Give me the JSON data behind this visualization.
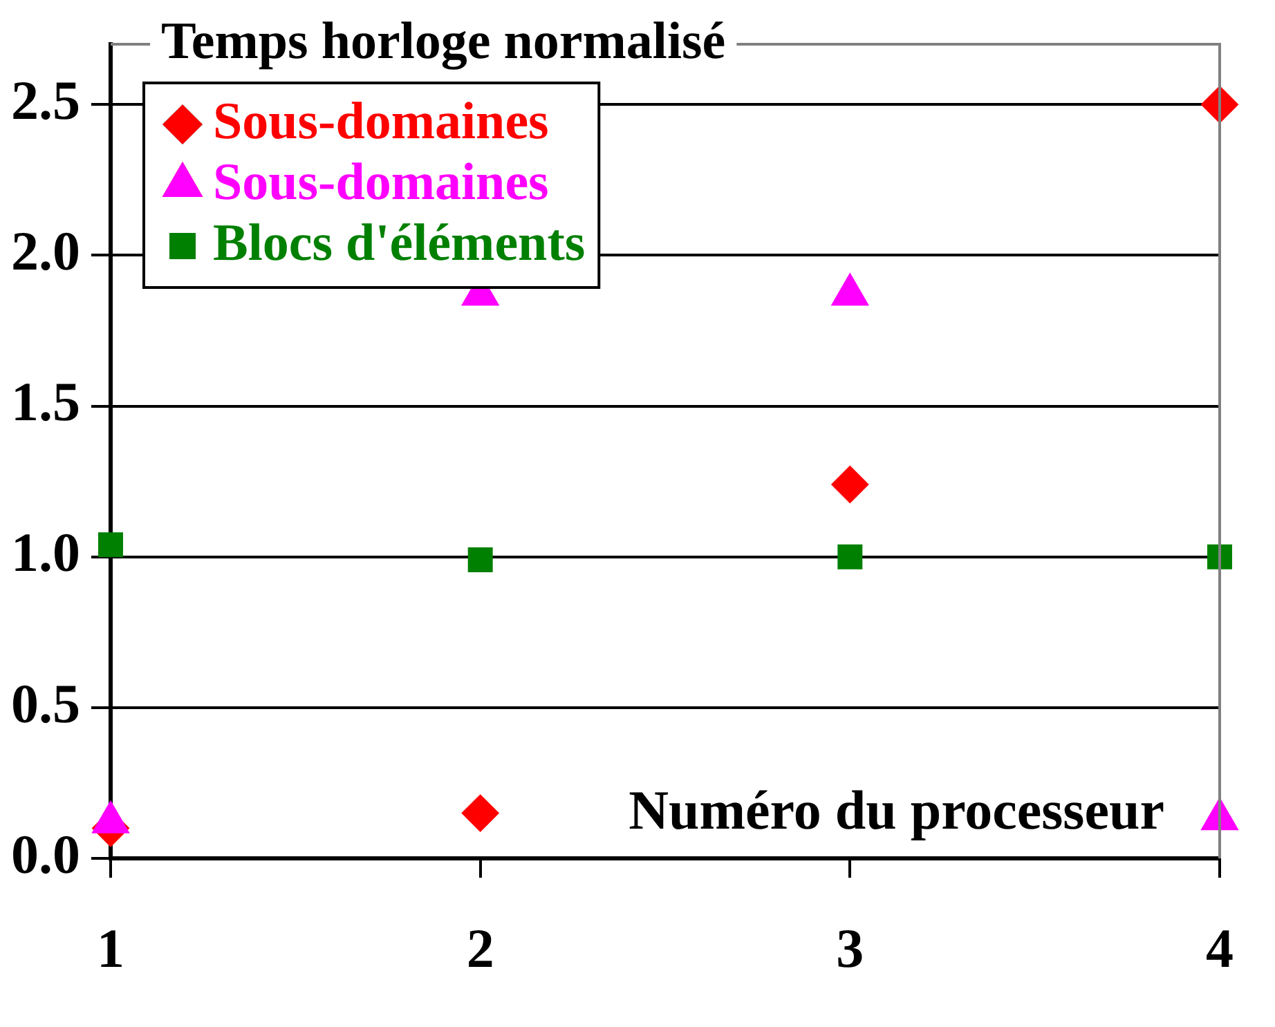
{
  "chart_data": {
    "type": "scatter",
    "title": "Temps horloge normalisé",
    "xlabel": "Numéro du processeur",
    "x": [
      1,
      2,
      3,
      4
    ],
    "xlim": [
      1,
      4
    ],
    "xticks": [
      1,
      2,
      3,
      4
    ],
    "ylim": [
      0,
      2.7
    ],
    "yticks": [
      {
        "value": 0,
        "label": "0.0"
      },
      {
        "value": 0.5,
        "label": "0.5"
      },
      {
        "value": 1,
        "label": "1.0"
      },
      {
        "value": 1.5,
        "label": "1.5"
      },
      {
        "value": 2,
        "label": "2.0"
      },
      {
        "value": 2.5,
        "label": "2.5"
      }
    ],
    "grid": "y",
    "legend": "top left",
    "series": [
      {
        "name": "Sous-domaines",
        "color": "#ff0000",
        "marker": "diamond",
        "values": [
          0.1,
          0.15,
          1.24,
          2.5
        ]
      },
      {
        "name": "Sous-domaines",
        "color": "#ff00ff",
        "marker": "triangle",
        "values": [
          0.12,
          1.87,
          1.87,
          0.13
        ]
      },
      {
        "name": "Blocs d'éléments",
        "color": "#008000",
        "marker": "square",
        "values": [
          1.04,
          0.99,
          1.0,
          1.0
        ]
      }
    ]
  }
}
